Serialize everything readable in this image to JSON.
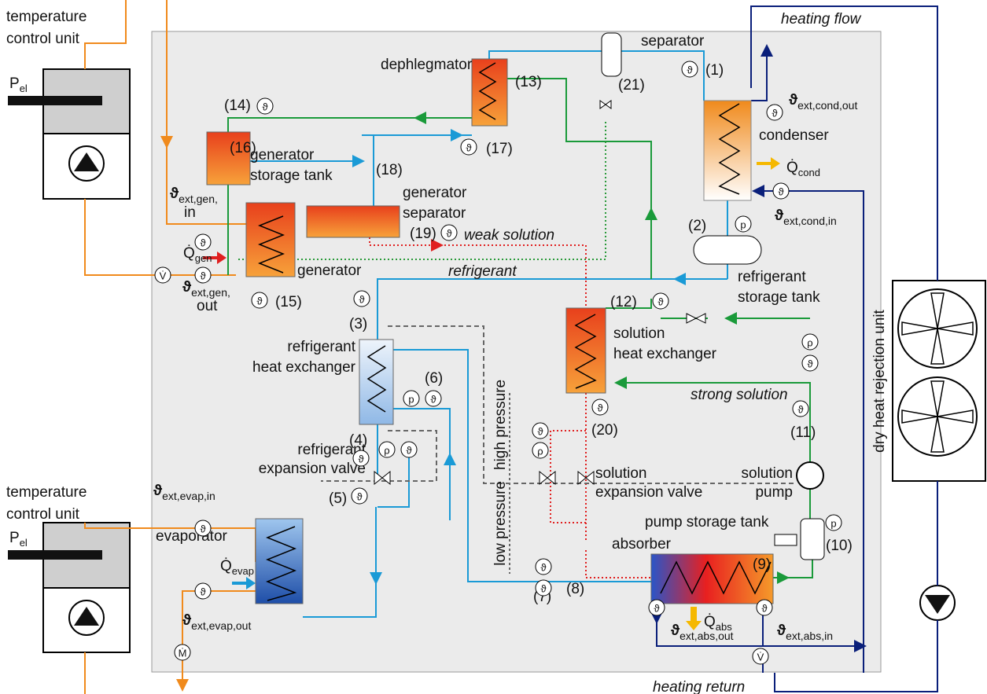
{
  "control_units": [
    {
      "label": [
        "temperature",
        "control unit"
      ],
      "power": {
        "symbol": "P",
        "sub": "el"
      }
    },
    {
      "label": [
        "temperature",
        "control unit"
      ],
      "power": {
        "symbol": "P",
        "sub": "el"
      }
    }
  ],
  "heating_flow": "heating flow",
  "heating_return": "heating return",
  "symbols": {
    "temperature": "ϑ",
    "pressure": "p",
    "density": "ρ",
    "volume_flow": "V̇",
    "mass_flow": "Ṁ"
  },
  "components": {
    "separator": [
      "separator"
    ],
    "dephlegmator": [
      "dephlegmator"
    ],
    "condenser": [
      "condenser"
    ],
    "generator_storage_tank": [
      "generator",
      "storage tank"
    ],
    "generator_separator": [
      "generator",
      "separator"
    ],
    "generator": [
      "generator"
    ],
    "refrigerant_storage_tank": [
      "refrigerant",
      "storage tank"
    ],
    "solution_heat_exchanger": [
      "solution",
      "heat exchanger"
    ],
    "refrigerant_heat_exchanger": [
      "refrigerant",
      "heat exchanger"
    ],
    "refrigerant_expansion_valve": [
      "refrigerant",
      "expansion valve"
    ],
    "solution_expansion_valve": [
      "solution",
      "expansion valve"
    ],
    "solution_pump": [
      "solution",
      "pump"
    ],
    "pump_storage_tank": [
      "pump storage tank"
    ],
    "absorber": [
      "absorber"
    ],
    "evaporator": [
      "evaporator"
    ],
    "dry_heat_rejection_unit": [
      "dry heat rejection unit"
    ]
  },
  "states": [
    "(1)",
    "(2)",
    "(3)",
    "(4)",
    "(5)",
    "(6)",
    "(7)",
    "(8)",
    "(9)",
    "(10)",
    "(11)",
    "(12)",
    "(13)",
    "(14)",
    "(15)",
    "(16)",
    "(17)",
    "(18)",
    "(19)",
    "(20)",
    "(21)"
  ],
  "streams": {
    "weak_solution": "weak solution",
    "strong_solution": "strong solution",
    "refrigerant": "refrigerant"
  },
  "pressure_levels": {
    "low": "low pressure",
    "high": "high pressure"
  },
  "heat_flows": {
    "generator": {
      "symbol": "Q̇",
      "sub": "gen"
    },
    "condenser": {
      "symbol": "Q̇",
      "sub": "cond"
    },
    "evaporator": {
      "symbol": "Q̇",
      "sub": "evap"
    },
    "absorber": {
      "symbol": "Q̇",
      "sub": "abs"
    }
  },
  "external_temperatures": {
    "gen_in": {
      "symbol": "ϑ",
      "sub": [
        "ext,gen,",
        "in"
      ]
    },
    "gen_out": {
      "symbol": "ϑ",
      "sub": [
        "ext,gen,",
        "out"
      ]
    },
    "cond_out": {
      "symbol": "ϑ",
      "sub": [
        "ext,cond,out"
      ]
    },
    "cond_in": {
      "symbol": "ϑ",
      "sub": [
        "ext,cond,in"
      ]
    },
    "evap_in": {
      "symbol": "ϑ",
      "sub": [
        "ext,evap,in"
      ]
    },
    "evap_out": {
      "symbol": "ϑ",
      "sub": [
        "ext,evap,out"
      ]
    },
    "abs_out": {
      "symbol": "ϑ",
      "sub": [
        "ext,abs,out"
      ]
    },
    "abs_in": {
      "symbol": "ϑ",
      "sub": [
        "ext,abs,in"
      ]
    }
  }
}
